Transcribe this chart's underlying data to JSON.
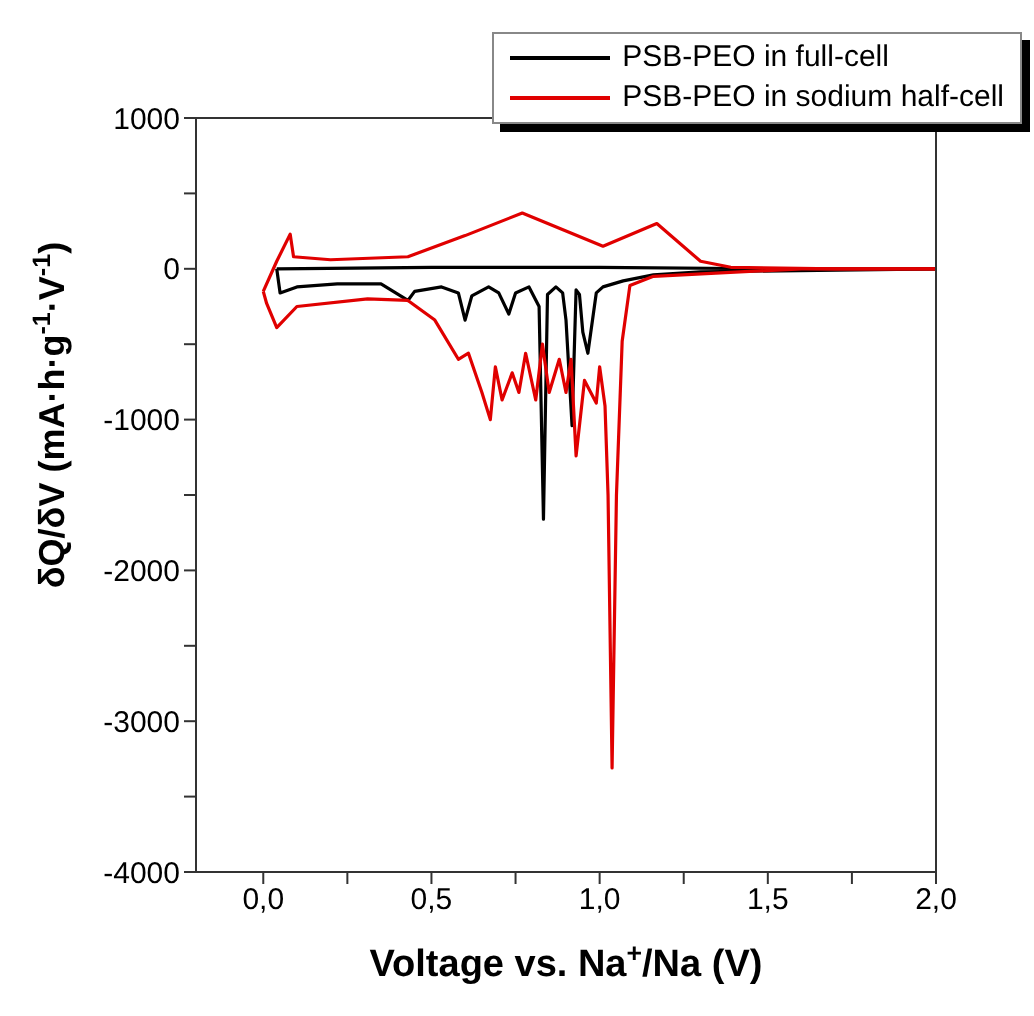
{
  "chart_data": {
    "type": "line",
    "xlabel": "Voltage vs. Na$^{+}$/Na (V)",
    "ylabel": "δQ/δV (mA·h·g$^{-1}$·V$^{-1}$)",
    "xlim": [
      -0.2,
      2.0
    ],
    "xticks": [
      {
        "value": 0,
        "label": "0,0"
      },
      {
        "value": 0.25,
        "label": null
      },
      {
        "value": 0.5,
        "label": "0,5"
      },
      {
        "value": 0.75,
        "label": null
      },
      {
        "value": 1.0,
        "label": "1,0"
      },
      {
        "value": 1.25,
        "label": null
      },
      {
        "value": 1.5,
        "label": "1,5"
      },
      {
        "value": 1.75,
        "label": null
      },
      {
        "value": 2.0,
        "label": "2,0"
      }
    ],
    "ylim": [
      -4000,
      1000
    ],
    "yticks": [
      -4000,
      {
        "value": -3500,
        "label": null
      },
      -3000,
      {
        "value": -2500,
        "label": null
      },
      -2000,
      {
        "value": -1500,
        "label": null
      },
      -1000,
      {
        "value": -500,
        "label": null
      },
      0,
      {
        "value": 500,
        "label": null
      },
      1000
    ],
    "legend": "top right",
    "marker": "none",
    "line_style": "solid",
    "series": [
      {
        "name": "PSB-PEO in full-cell",
        "color": "#000000",
        "x": [
          0.04,
          0.05,
          0.1,
          0.22,
          0.35,
          0.43,
          0.45,
          0.53,
          0.58,
          0.6,
          0.62,
          0.67,
          0.7,
          0.73,
          0.75,
          0.79,
          0.82,
          0.833,
          0.845,
          0.87,
          0.89,
          0.9,
          0.918,
          0.93,
          0.94,
          0.95,
          0.965,
          0.99,
          1.01,
          1.07,
          1.16,
          1.3,
          1.65,
          2.0
        ],
        "values": [
          0,
          -160,
          -120,
          -100,
          -100,
          -210,
          -150,
          -120,
          -160,
          -340,
          -180,
          -120,
          -160,
          -300,
          -160,
          -120,
          -250,
          -1660,
          -170,
          -120,
          -160,
          -340,
          -1040,
          -140,
          -170,
          -420,
          -560,
          -160,
          -120,
          -80,
          -40,
          -20,
          -10,
          0
        ]
      },
      {
        "color": "#000000",
        "x": [
          0.04,
          0.5,
          1.0,
          1.5,
          2.0
        ],
        "values": [
          0,
          10,
          10,
          0,
          0
        ]
      },
      {
        "name": "PSB-PEO in sodium half-cell",
        "color": "#e00000",
        "x": [
          0.0,
          0.01,
          0.04,
          0.1,
          0.31,
          0.43,
          0.51,
          0.58,
          0.61,
          0.65,
          0.675,
          0.69,
          0.71,
          0.74,
          0.76,
          0.78,
          0.81,
          0.83,
          0.85,
          0.88,
          0.9,
          0.915,
          0.93,
          0.955,
          0.99,
          1.0,
          1.016,
          1.025,
          1.037,
          1.05,
          1.067,
          1.09,
          1.16,
          1.6,
          2.0
        ],
        "values": [
          -150,
          -230,
          -390,
          -250,
          -200,
          -210,
          -340,
          -600,
          -560,
          -820,
          -1000,
          -650,
          -870,
          -690,
          -820,
          -560,
          -870,
          -500,
          -820,
          -600,
          -820,
          -600,
          -1240,
          -740,
          -890,
          -650,
          -910,
          -1500,
          -3310,
          -1500,
          -480,
          -110,
          -50,
          0,
          0
        ]
      },
      {
        "color": "#e00000",
        "x": [
          0.0,
          0.04,
          0.08,
          0.09,
          0.2,
          0.43,
          0.6,
          0.77,
          0.9,
          1.01,
          1.17,
          1.3,
          1.39,
          1.7,
          2.0
        ],
        "values": [
          -150,
          50,
          230,
          80,
          60,
          80,
          220,
          370,
          250,
          150,
          300,
          50,
          10,
          0,
          0
        ]
      }
    ]
  }
}
